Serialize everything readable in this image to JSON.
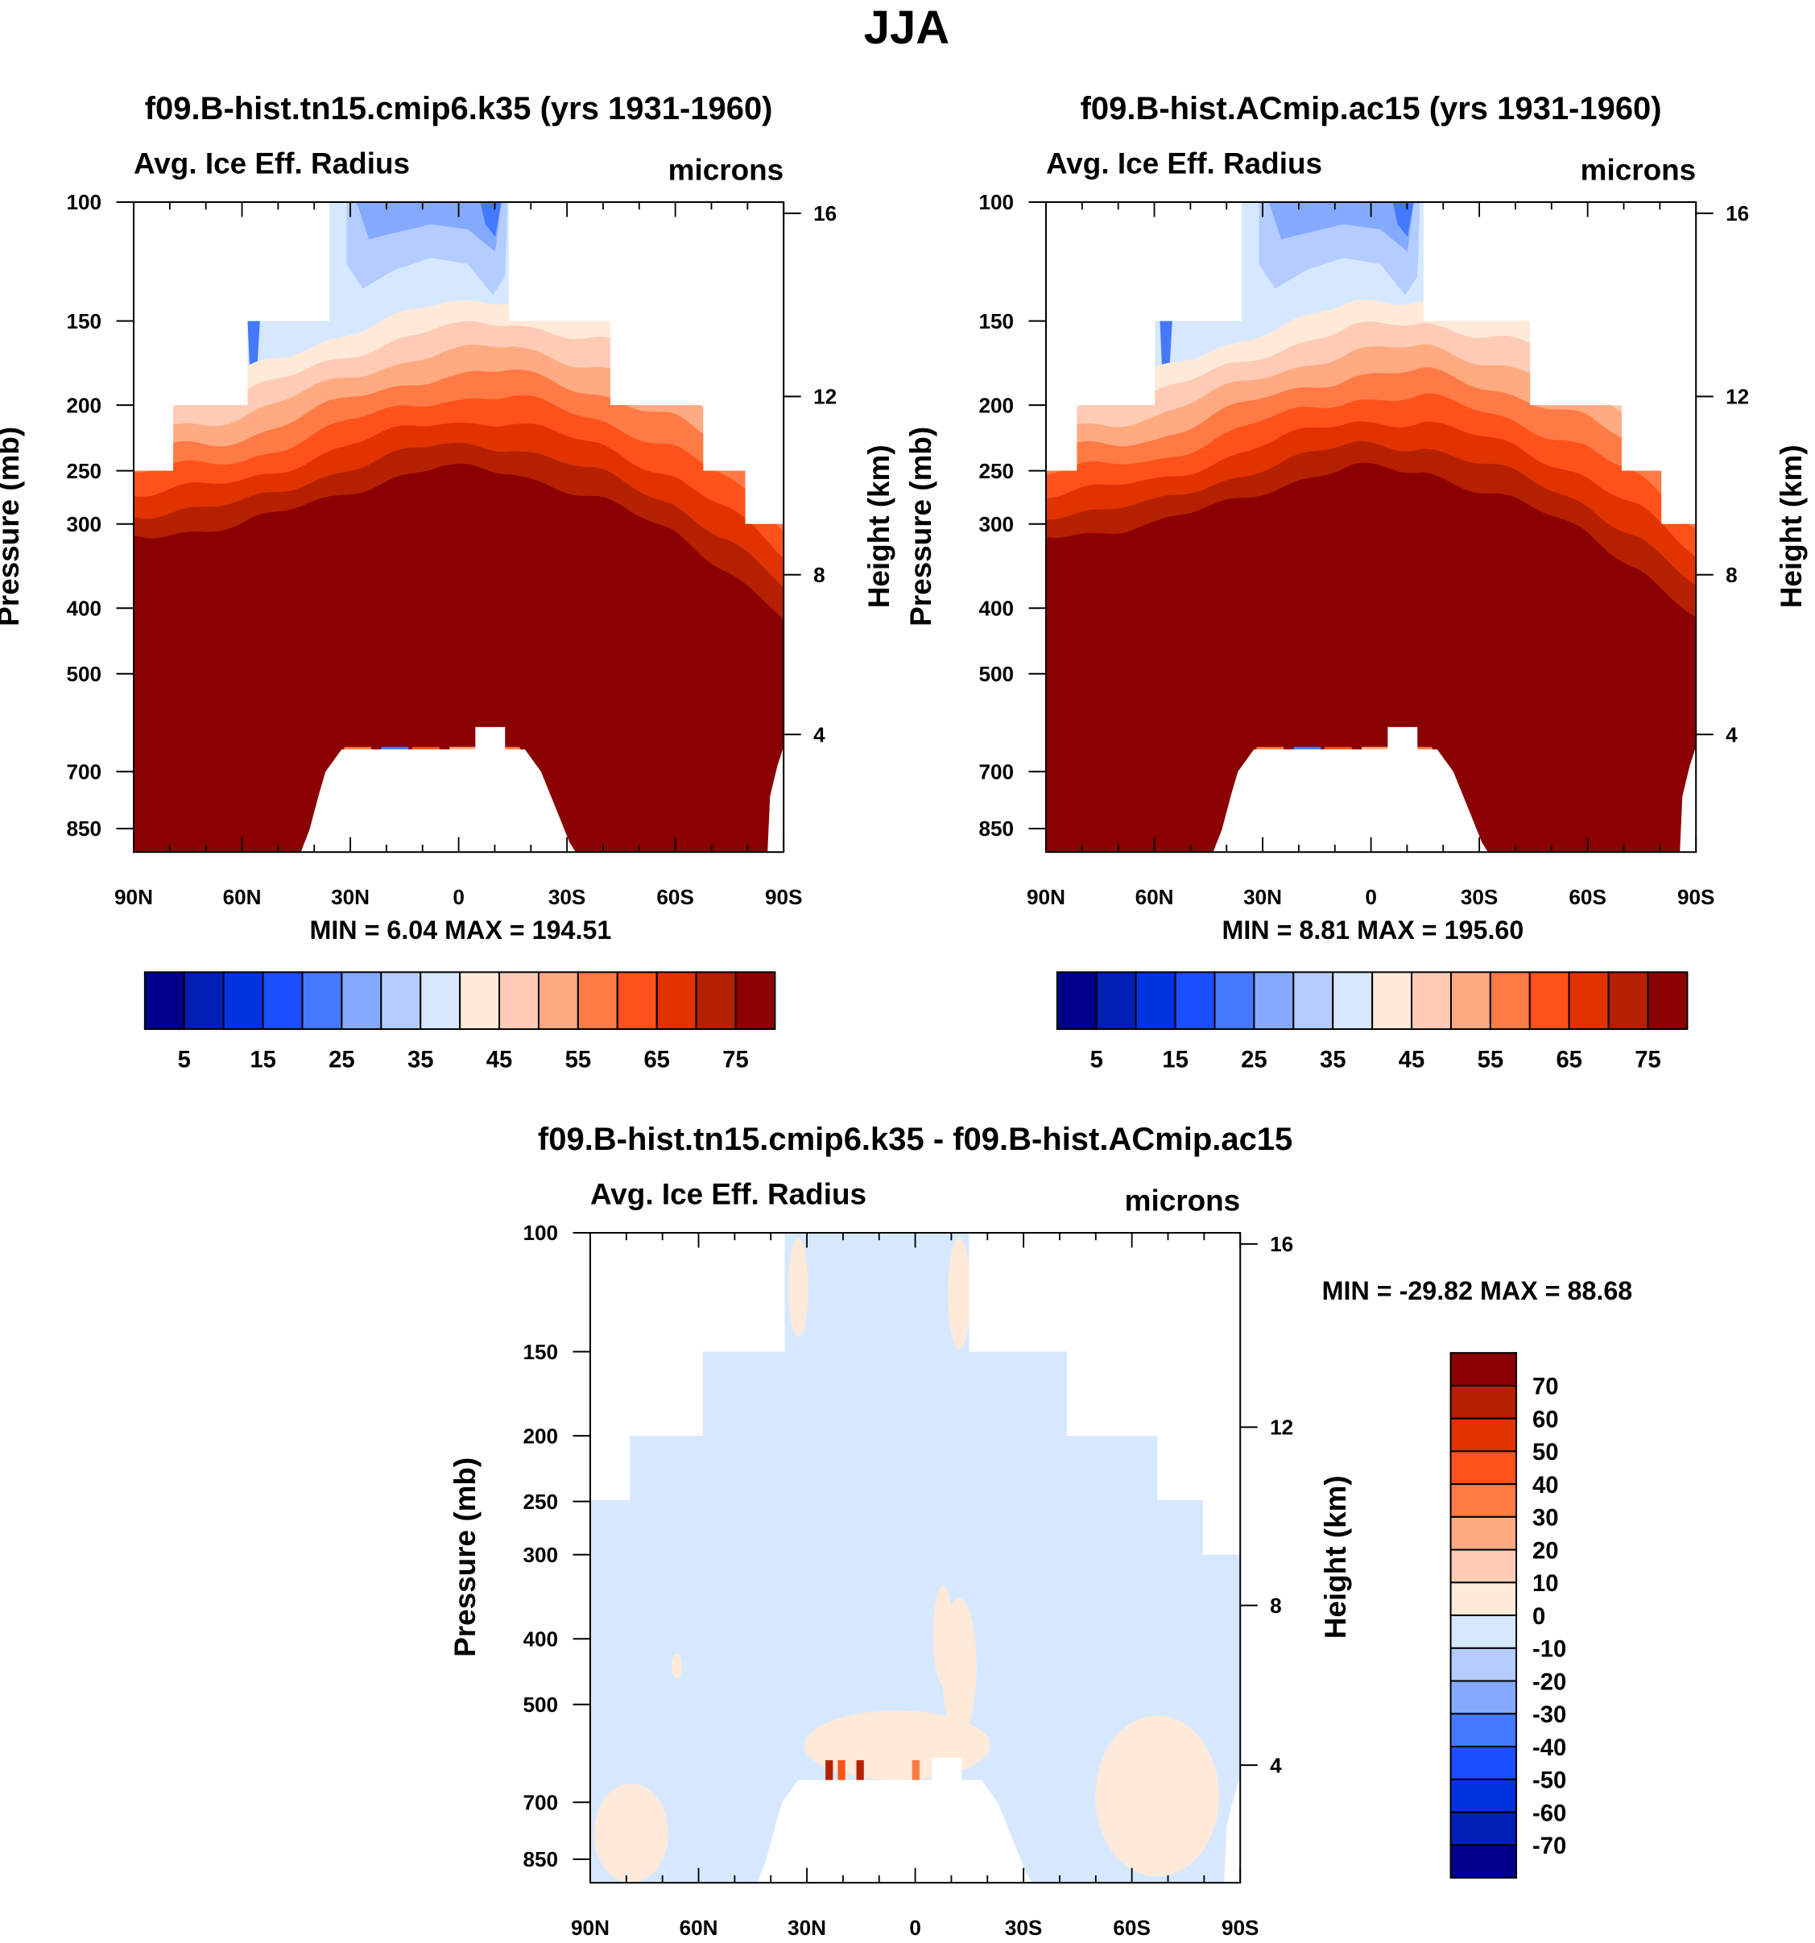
{
  "figure_title": "JJA",
  "colors": [
    "#00008B",
    "#0020B5",
    "#0033E0",
    "#1A4FFF",
    "#4479FF",
    "#84AAFF",
    "#B4CCFF",
    "#D6E8FF",
    "#FFEADA",
    "#FFCBB5",
    "#FFAA80",
    "#FF7A45",
    "#FF521A",
    "#E03300",
    "#B52000",
    "#8B0000"
  ],
  "chart_data": [
    {
      "type": "heatmap",
      "title": "f09.B-hist.tn15.cmip6.k35 (yrs 1931-1960)",
      "left_label": "Avg. Ice Eff. Radius",
      "units": "microns",
      "ylabel": "Pressure (mb)",
      "ylabel_right": "Height (km)",
      "yticks": [
        "100",
        "150",
        "200",
        "250",
        "300",
        "400",
        "500",
        "700",
        "850"
      ],
      "yticks_right": [
        "16",
        "12",
        "8",
        "4"
      ],
      "xticks": [
        "90N",
        "60N",
        "30N",
        "0",
        "30S",
        "60S",
        "90S"
      ],
      "min_max": "MIN =   6.04  MAX = 194.51",
      "min": 6.04,
      "max": 194.51,
      "colorbar": {
        "orientation": "horizontal",
        "labels": [
          "5",
          "15",
          "25",
          "35",
          "45",
          "55",
          "65",
          "75"
        ]
      }
    },
    {
      "type": "heatmap",
      "title": "f09.B-hist.ACmip.ac15 (yrs 1931-1960)",
      "left_label": "Avg. Ice Eff. Radius",
      "units": "microns",
      "ylabel": "Pressure (mb)",
      "ylabel_right": "Height (km)",
      "yticks": [
        "100",
        "150",
        "200",
        "250",
        "300",
        "400",
        "500",
        "700",
        "850"
      ],
      "yticks_right": [
        "16",
        "12",
        "8",
        "4"
      ],
      "xticks": [
        "90N",
        "60N",
        "30N",
        "0",
        "30S",
        "60S",
        "90S"
      ],
      "min_max": "MIN =   8.81  MAX = 195.60",
      "min": 8.81,
      "max": 195.6,
      "colorbar": {
        "orientation": "horizontal",
        "labels": [
          "5",
          "15",
          "25",
          "35",
          "45",
          "55",
          "65",
          "75"
        ]
      }
    },
    {
      "type": "heatmap",
      "title": "f09.B-hist.tn15.cmip6.k35 - f09.B-hist.ACmip.ac15",
      "left_label": "Avg. Ice Eff. Radius",
      "units": "microns",
      "ylabel": "Pressure (mb)",
      "ylabel_right": "Height (km)",
      "yticks": [
        "100",
        "150",
        "200",
        "250",
        "300",
        "400",
        "500",
        "700",
        "850"
      ],
      "yticks_right": [
        "16",
        "12",
        "8",
        "4"
      ],
      "xticks": [
        "90N",
        "60N",
        "30N",
        "0",
        "30S",
        "60S",
        "90S"
      ],
      "min_max": "MIN = -29.82  MAX =  88.68",
      "min": -29.82,
      "max": 88.68,
      "colorbar": {
        "orientation": "vertical",
        "labels": [
          "70",
          "60",
          "50",
          "40",
          "30",
          "20",
          "10",
          "0",
          "-10",
          "-20",
          "-30",
          "-40",
          "-50",
          "-60",
          "-70"
        ]
      }
    }
  ]
}
